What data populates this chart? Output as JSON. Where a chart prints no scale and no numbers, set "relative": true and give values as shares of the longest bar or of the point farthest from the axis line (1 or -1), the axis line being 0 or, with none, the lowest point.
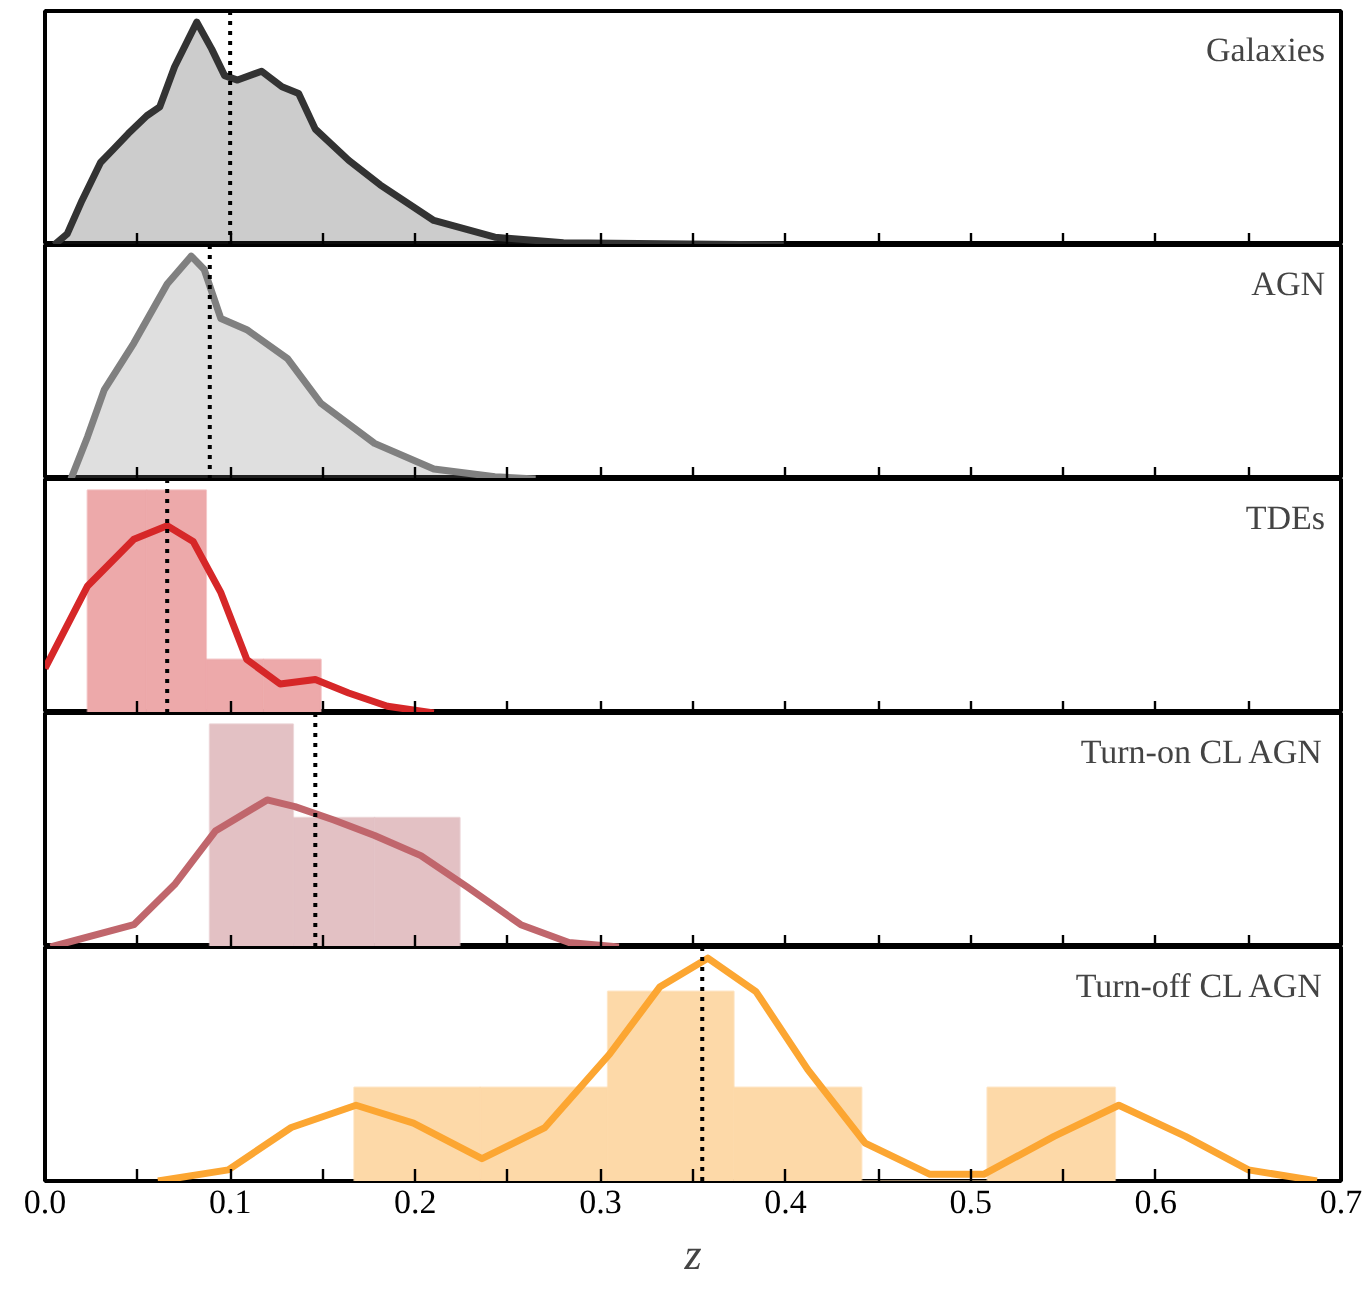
{
  "chart_data": [
    {
      "type": "area",
      "title": "Galaxies",
      "relative": true,
      "xlim": [
        0,
        0.7
      ],
      "xticks": [
        0,
        {
          "value": 0.05,
          "label": null
        },
        0.1,
        {
          "value": 0.15,
          "label": null
        },
        0.2,
        {
          "value": 0.25,
          "label": null
        },
        0.3,
        {
          "value": 0.35,
          "label": null
        },
        0.4,
        {
          "value": 0.45,
          "label": null
        },
        0.5,
        {
          "value": 0.55,
          "label": null
        },
        0.6,
        {
          "value": 0.65,
          "label": null
        },
        0.7
      ],
      "tick_labels": false,
      "grid": false,
      "x": [
        0.005,
        0.012,
        0.02,
        0.03,
        0.037,
        0.045,
        0.055,
        0.062,
        0.07,
        0.082,
        0.09,
        0.097,
        0.104,
        0.117,
        0.128,
        0.137,
        0.146,
        0.164,
        0.181,
        0.21,
        0.243,
        0.28,
        0.4
      ],
      "series": [
        {
          "color": "#333333",
          "values": [
            0,
            0.05,
            0.2,
            0.37,
            0.43,
            0.5,
            0.58,
            0.62,
            0.8,
            1.0,
            0.88,
            0.76,
            0.74,
            0.78,
            0.71,
            0.68,
            0.52,
            0.38,
            0.27,
            0.11,
            0.035,
            0.01,
            0
          ]
        }
      ],
      "ref_lines": [
        {
          "axis": "x",
          "value": 0.1,
          "color": "#000000",
          "line_style": "dotted"
        }
      ]
    },
    {
      "type": "area",
      "title": "AGN",
      "relative": true,
      "xlim": [
        0,
        0.7
      ],
      "xticks": [
        0,
        {
          "value": 0.05,
          "label": null
        },
        0.1,
        {
          "value": 0.15,
          "label": null
        },
        0.2,
        {
          "value": 0.25,
          "label": null
        },
        0.3,
        {
          "value": 0.35,
          "label": null
        },
        0.4,
        {
          "value": 0.45,
          "label": null
        },
        0.5,
        {
          "value": 0.55,
          "label": null
        },
        0.6,
        {
          "value": 0.65,
          "label": null
        },
        0.7
      ],
      "tick_labels": false,
      "grid": false,
      "x": [
        0.014,
        0.023,
        0.032,
        0.048,
        0.066,
        0.079,
        0.086,
        0.095,
        0.109,
        0.131,
        0.149,
        0.178,
        0.21,
        0.243,
        0.265
      ],
      "series": [
        {
          "color": "#808080",
          "values": [
            0,
            0.19,
            0.4,
            0.61,
            0.875,
            1.0,
            0.94,
            0.72,
            0.67,
            0.54,
            0.34,
            0.16,
            0.045,
            0.01,
            0
          ]
        }
      ],
      "ref_lines": [
        {
          "axis": "x",
          "value": 0.089,
          "color": "#000000",
          "line_style": "dotted"
        }
      ]
    },
    {
      "type": "line",
      "title": "TDEs",
      "relative": true,
      "xlim": [
        0,
        0.7
      ],
      "xticks": [
        0,
        {
          "value": 0.05,
          "label": null
        },
        0.1,
        {
          "value": 0.15,
          "label": null
        },
        0.2,
        {
          "value": 0.25,
          "label": null
        },
        0.3,
        {
          "value": 0.35,
          "label": null
        },
        0.4,
        {
          "value": 0.45,
          "label": null
        },
        0.5,
        {
          "value": 0.55,
          "label": null
        },
        0.6,
        {
          "value": 0.65,
          "label": null
        },
        0.7
      ],
      "tick_labels": false,
      "grid": false,
      "series": [
        {
          "type": "histogram",
          "color": "#eda9aa",
          "bins": [
            0.023,
            0.055,
            0.087,
            0.118,
            0.149
          ],
          "values": [
            1.0,
            1.0,
            0.24,
            0.24
          ]
        },
        {
          "type": "line",
          "color": "#d62728",
          "x": [
            0,
            0.023,
            0.048,
            0.066,
            0.08,
            0.095,
            0.109,
            0.127,
            0.146,
            0.164,
            0.185,
            0.21
          ],
          "values": [
            0.2,
            0.57,
            0.78,
            0.84,
            0.77,
            0.54,
            0.24,
            0.13,
            0.15,
            0.09,
            0.03,
            0
          ]
        }
      ],
      "ref_lines": [
        {
          "axis": "x",
          "value": 0.066,
          "color": "#000000",
          "line_style": "dotted"
        }
      ]
    },
    {
      "type": "line",
      "title": "Turn-on CL AGN",
      "relative": true,
      "xlim": [
        0,
        0.7
      ],
      "xticks": [
        0,
        {
          "value": 0.05,
          "label": null
        },
        0.1,
        {
          "value": 0.15,
          "label": null
        },
        0.2,
        {
          "value": 0.25,
          "label": null
        },
        0.3,
        {
          "value": 0.35,
          "label": null
        },
        0.4,
        {
          "value": 0.45,
          "label": null
        },
        0.5,
        {
          "value": 0.55,
          "label": null
        },
        0.6,
        {
          "value": 0.65,
          "label": null
        },
        0.7
      ],
      "tick_labels": false,
      "grid": false,
      "series": [
        {
          "type": "histogram",
          "color": "#e3c1c4",
          "bins": [
            0.089,
            0.134,
            0.178,
            0.224
          ],
          "values": [
            1.0,
            0.58,
            0.58
          ]
        },
        {
          "type": "line",
          "color": "#c0666c",
          "x": [
            0.003,
            0.048,
            0.07,
            0.092,
            0.12,
            0.135,
            0.156,
            0.178,
            0.203,
            0.228,
            0.257,
            0.283,
            0.31
          ],
          "values": [
            0,
            0.1,
            0.28,
            0.52,
            0.66,
            0.63,
            0.57,
            0.5,
            0.41,
            0.27,
            0.1,
            0.02,
            0
          ]
        }
      ],
      "ref_lines": [
        {
          "axis": "x",
          "value": 0.146,
          "color": "#000000",
          "line_style": "dotted"
        }
      ]
    },
    {
      "type": "line",
      "title": "Turn-off CL AGN",
      "xlabel": "z",
      "relative": true,
      "xlim": [
        0,
        0.7
      ],
      "xticks": [
        {
          "value": 0,
          "label": "0.0"
        },
        {
          "value": 0.05,
          "label": null
        },
        0.1,
        {
          "value": 0.15,
          "label": null
        },
        0.2,
        {
          "value": 0.25,
          "label": null
        },
        0.3,
        {
          "value": 0.35,
          "label": null
        },
        0.4,
        {
          "value": 0.45,
          "label": null
        },
        0.5,
        {
          "value": 0.55,
          "label": null
        },
        0.6,
        {
          "value": 0.65,
          "label": null
        },
        0.7
      ],
      "tick_labels": "x",
      "grid": false,
      "series": [
        {
          "type": "histogram",
          "color": "#fdd9a8",
          "bins": [
            0.167,
            0.235,
            0.304,
            0.372,
            0.441,
            0.509,
            0.578
          ],
          "values": [
            0.42,
            0.42,
            0.85,
            0.42,
            0,
            0.42
          ]
        },
        {
          "type": "line",
          "color": "#fca632",
          "x": [
            0.061,
            0.099,
            0.133,
            0.168,
            0.199,
            0.236,
            0.27,
            0.305,
            0.332,
            0.358,
            0.384,
            0.412,
            0.443,
            0.478,
            0.507,
            0.545,
            0.58,
            0.616,
            0.65,
            0.687
          ],
          "values": [
            0,
            0.05,
            0.24,
            0.34,
            0.26,
            0.1,
            0.24,
            0.57,
            0.87,
            1.0,
            0.85,
            0.5,
            0.17,
            0.03,
            0.03,
            0.2,
            0.34,
            0.2,
            0.05,
            0
          ]
        }
      ],
      "ref_lines": [
        {
          "axis": "x",
          "value": 0.355,
          "color": "#000000",
          "line_style": "dotted"
        }
      ]
    }
  ]
}
